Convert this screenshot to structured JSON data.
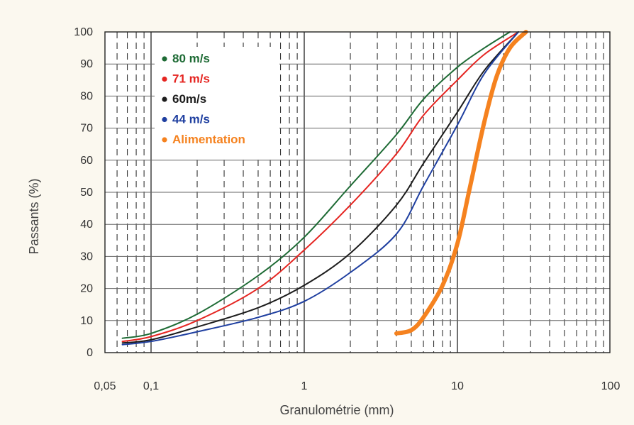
{
  "chart_data": {
    "type": "line",
    "xlabel": "Granulométrie (mm)",
    "ylabel": "Passants (%)",
    "x_scale": "log",
    "xlim": [
      0.06,
      100
    ],
    "ylim": [
      0,
      100
    ],
    "x_tick_labels": [
      {
        "value": 0.05,
        "label": "0,05"
      },
      {
        "value": 0.1,
        "label": "0,1"
      },
      {
        "value": 1,
        "label": "1"
      },
      {
        "value": 10,
        "label": "10"
      },
      {
        "value": 100,
        "label": "100"
      }
    ],
    "y_ticks": [
      0,
      10,
      20,
      30,
      40,
      50,
      60,
      70,
      80,
      90,
      100
    ],
    "grid": true,
    "legend_position": "top-left",
    "series": [
      {
        "name": "80 m/s",
        "color": "#1e6b35",
        "x": [
          0.065,
          0.1,
          0.2,
          0.5,
          1,
          2,
          4,
          6,
          10,
          15,
          22
        ],
        "y": [
          4.5,
          6,
          12,
          24,
          36,
          52,
          68,
          79,
          89,
          95,
          100
        ]
      },
      {
        "name": "71 m/s",
        "color": "#e52521",
        "x": [
          0.065,
          0.1,
          0.2,
          0.5,
          1,
          2,
          4,
          6,
          10,
          15,
          25
        ],
        "y": [
          3.5,
          5,
          10,
          20,
          32,
          46,
          62,
          74,
          85,
          93,
          100
        ]
      },
      {
        "name": "60m/s",
        "color": "#1c1c1c",
        "x": [
          0.065,
          0.1,
          0.2,
          0.5,
          1,
          2,
          4,
          6,
          10,
          15,
          25
        ],
        "y": [
          3,
          4,
          8,
          14,
          21,
          31,
          46,
          59,
          75,
          88,
          100
        ]
      },
      {
        "name": "44 m/s",
        "color": "#1f3fa0",
        "x": [
          0.065,
          0.1,
          0.2,
          0.5,
          1,
          2,
          4,
          6,
          10,
          15,
          25
        ],
        "y": [
          2.5,
          3.5,
          6.5,
          11,
          16,
          25,
          37,
          52,
          71,
          87,
          100
        ]
      },
      {
        "name": "Alimentation",
        "color": "#f5821f",
        "x": [
          4,
          5,
          6,
          8,
          10,
          12,
          15,
          18,
          22,
          28
        ],
        "y": [
          6,
          7,
          11,
          21,
          34,
          51,
          72,
          86,
          95,
          100
        ]
      }
    ]
  }
}
